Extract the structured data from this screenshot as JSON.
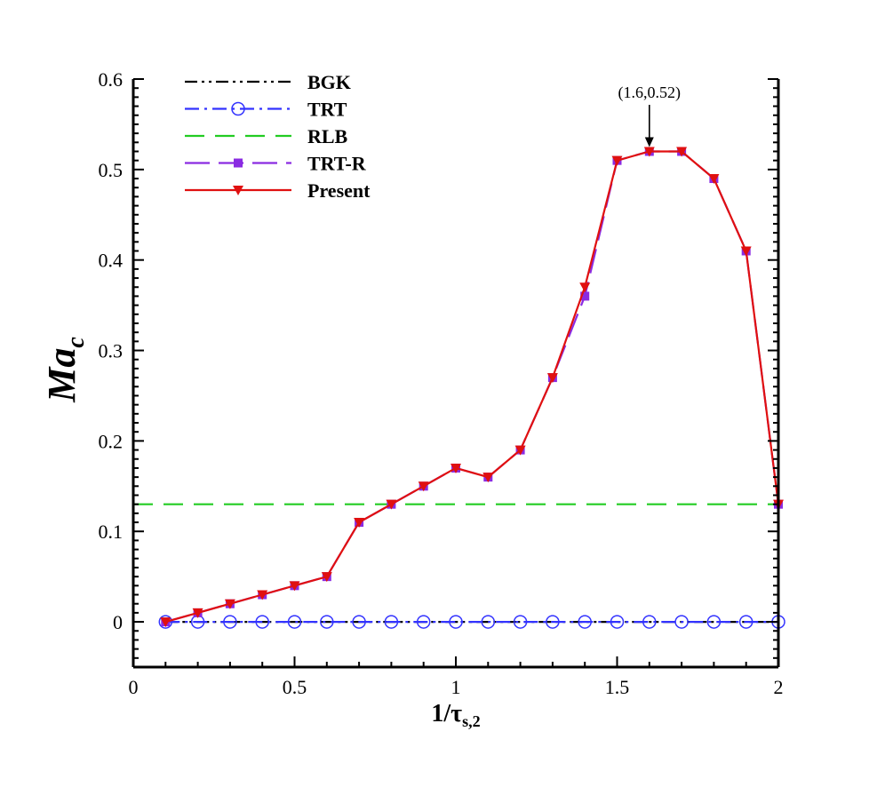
{
  "chart_data": {
    "type": "line",
    "title": "",
    "xlabel": {
      "main": "1/τ",
      "sub": "s,2"
    },
    "ylabel": {
      "main": "Ma",
      "sub": "c"
    },
    "xlim": [
      0,
      2
    ],
    "ylim": [
      -0.05,
      0.6
    ],
    "xticks": [
      0,
      0.5,
      1,
      1.5,
      2
    ],
    "xtick_labels": [
      "0",
      "0.5",
      "1",
      "1.5",
      "2"
    ],
    "yticks": [
      0,
      0.1,
      0.2,
      0.3,
      0.4,
      0.5,
      0.6
    ],
    "ytick_labels": [
      "0",
      "0.1",
      "0.2",
      "0.3",
      "0.4",
      "0.5",
      "0.6"
    ],
    "grid": false,
    "legend_position": "top-left",
    "annotation": {
      "text": "(1.6,0.52)",
      "x": 1.6,
      "y": 0.52
    },
    "series": [
      {
        "name": "BGK",
        "color": "#000000",
        "style": "dash-dot-dot",
        "marker": "none",
        "x": [
          0.1,
          2.0
        ],
        "y": [
          0,
          0
        ]
      },
      {
        "name": "TRT",
        "color": "#3333ff",
        "style": "dash-dot",
        "marker": "circle-open",
        "x": [
          0.1,
          0.2,
          0.3,
          0.4,
          0.5,
          0.6,
          0.7,
          0.8,
          0.9,
          1.0,
          1.1,
          1.2,
          1.3,
          1.4,
          1.5,
          1.6,
          1.7,
          1.8,
          1.9,
          2.0
        ],
        "y": [
          0,
          0,
          0,
          0,
          0,
          0,
          0,
          0,
          0,
          0,
          0,
          0,
          0,
          0,
          0,
          0,
          0,
          0,
          0,
          0
        ]
      },
      {
        "name": "RLB",
        "color": "#22cc22",
        "style": "dashed",
        "marker": "none",
        "x": [
          0,
          2.0
        ],
        "y": [
          0.13,
          0.13
        ]
      },
      {
        "name": "TRT-R",
        "color": "#8a2be2",
        "style": "long-dash",
        "marker": "square",
        "x": [
          0.1,
          0.2,
          0.3,
          0.4,
          0.5,
          0.6,
          0.7,
          0.8,
          0.9,
          1.0,
          1.1,
          1.2,
          1.3,
          1.4,
          1.5,
          1.6,
          1.7,
          1.8,
          1.9,
          2.0
        ],
        "y": [
          0,
          0.01,
          0.02,
          0.03,
          0.04,
          0.05,
          0.11,
          0.13,
          0.15,
          0.17,
          0.16,
          0.19,
          0.27,
          0.36,
          0.51,
          0.52,
          0.52,
          0.49,
          0.41,
          0.13
        ]
      },
      {
        "name": "Present",
        "color": "#e01010",
        "style": "solid",
        "marker": "triangle-down",
        "x": [
          0.1,
          0.2,
          0.3,
          0.4,
          0.5,
          0.6,
          0.7,
          0.8,
          0.9,
          1.0,
          1.1,
          1.2,
          1.3,
          1.4,
          1.5,
          1.6,
          1.7,
          1.8,
          1.9,
          2.0
        ],
        "y": [
          0,
          0.01,
          0.02,
          0.03,
          0.04,
          0.05,
          0.11,
          0.13,
          0.15,
          0.17,
          0.16,
          0.19,
          0.27,
          0.37,
          0.51,
          0.52,
          0.52,
          0.49,
          0.41,
          0.13
        ]
      }
    ]
  }
}
